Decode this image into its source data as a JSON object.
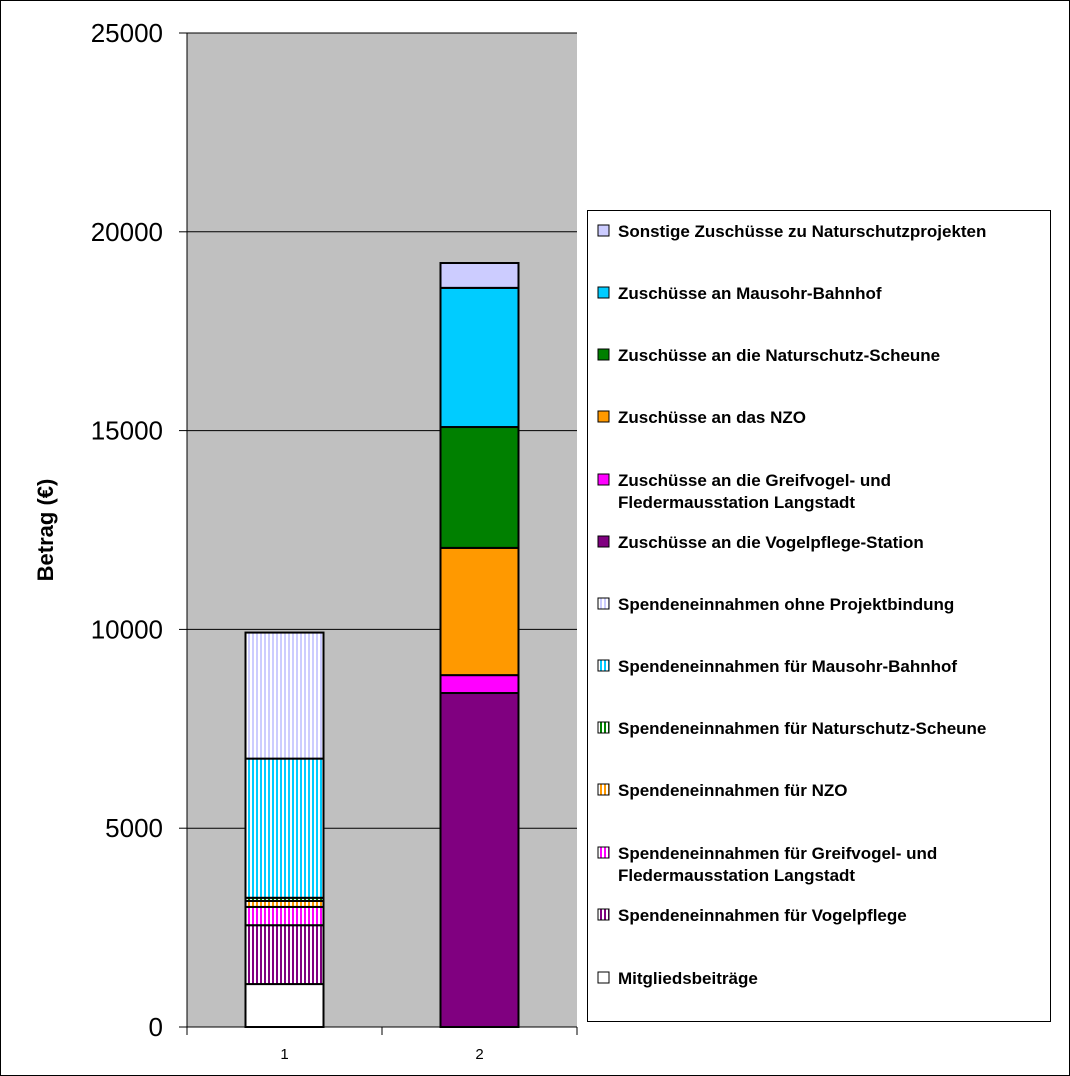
{
  "chart_data": {
    "type": "bar",
    "stacked": true,
    "title": "",
    "xlabel": "",
    "ylabel": "Betrag (€)",
    "ylim": [
      0,
      25000
    ],
    "yticks": [
      0,
      5000,
      10000,
      15000,
      20000,
      25000
    ],
    "categories": [
      "1",
      "2"
    ],
    "grid": true,
    "legend_position": "right",
    "series": [
      {
        "name": "Mitgliedsbeiträge",
        "values": [
          1080,
          0
        ],
        "color": "#ffffff",
        "pattern": "solid"
      },
      {
        "name": "Spendeneinnahmen für Vogelpflege",
        "values": [
          1480,
          0
        ],
        "color": "#800080",
        "pattern": "stripes"
      },
      {
        "name": "Spendeneinnahmen für Greifvogel- und Fledermausstation Langstadt",
        "values": [
          460,
          0
        ],
        "color": "#ff00ff",
        "pattern": "stripes"
      },
      {
        "name": "Spendeneinnahmen für NZO",
        "values": [
          150,
          0
        ],
        "color": "#ff9900",
        "pattern": "stripes"
      },
      {
        "name": "Spendeneinnahmen für Naturschutz-Scheune",
        "values": [
          80,
          0
        ],
        "color": "#008000",
        "pattern": "stripes"
      },
      {
        "name": "Spendeneinnahmen für Mausohr-Bahnhof",
        "values": [
          3500,
          0
        ],
        "color": "#00ccff",
        "pattern": "stripes"
      },
      {
        "name": "Spendeneinnahmen ohne Projektbindung",
        "values": [
          3170,
          0
        ],
        "color": "#ccccff",
        "pattern": "stripes"
      },
      {
        "name": "Zuschüsse an die Vogelpflege-Station",
        "values": [
          0,
          8400
        ],
        "color": "#800080",
        "pattern": "solid"
      },
      {
        "name": "Zuschüsse an die Greifvogel- und Fledermausstation Langstadt",
        "values": [
          0,
          450
        ],
        "color": "#ff00ff",
        "pattern": "solid"
      },
      {
        "name": "Zuschüsse an das NZO",
        "values": [
          0,
          3200
        ],
        "color": "#ff9900",
        "pattern": "solid"
      },
      {
        "name": "Zuschüsse an die Naturschutz-Scheune",
        "values": [
          0,
          3040
        ],
        "color": "#008000",
        "pattern": "solid"
      },
      {
        "name": "Zuschüsse an Mausohr-Bahnhof",
        "values": [
          0,
          3500
        ],
        "color": "#00ccff",
        "pattern": "solid"
      },
      {
        "name": "Sonstige Zuschüsse zu Naturschutzprojekten",
        "values": [
          0,
          625
        ],
        "color": "#ccccff",
        "pattern": "solid"
      }
    ],
    "legend_lines": [
      [
        "Sonstige Zuschüsse zu Naturschutzprojekten"
      ],
      [
        "Zuschüsse an Mausohr-Bahnhof"
      ],
      [
        "Zuschüsse an die Naturschutz-Scheune"
      ],
      [
        "Zuschüsse an das NZO"
      ],
      [
        "Zuschüsse an die Greifvogel- und",
        "Fledermausstation Langstadt"
      ],
      [
        "Zuschüsse an die Vogelpflege-Station"
      ],
      [
        "Spendeneinnahmen ohne Projektbindung"
      ],
      [
        "Spendeneinnahmen für Mausohr-Bahnhof"
      ],
      [
        "Spendeneinnahmen für Naturschutz-Scheune"
      ],
      [
        "Spendeneinnahmen für NZO"
      ],
      [
        "Spendeneinnahmen für Greifvogel- und",
        "Fledermausstation Langstadt"
      ],
      [
        "Spendeneinnahmen für Vogelpflege"
      ],
      [
        "Mitgliedsbeiträge"
      ]
    ],
    "plot_background": "#c0c0c0"
  }
}
